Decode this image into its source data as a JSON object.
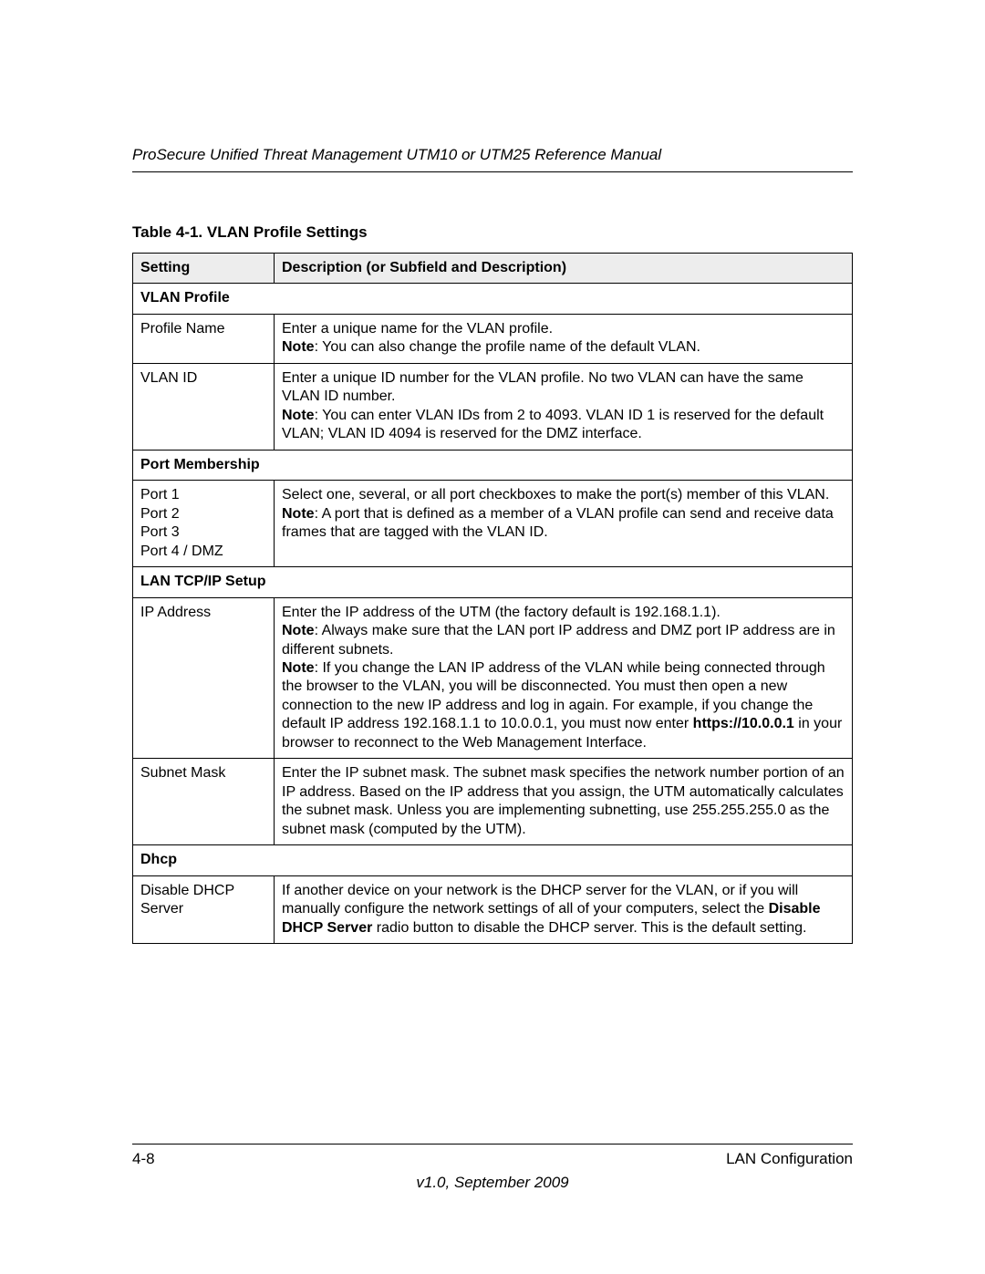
{
  "header": {
    "runningTitle": "ProSecure Unified Threat Management UTM10 or UTM25 Reference Manual"
  },
  "table": {
    "title": "Table 4-1. VLAN Profile Settings",
    "colHeaders": {
      "setting": "Setting",
      "description": "Description (or Subfield and Description)"
    },
    "sections": {
      "vlanProfile": {
        "label": "VLAN Profile",
        "rows": [
          {
            "setting": "Profile Name",
            "desc_part1": "Enter a unique name for the VLAN profile.",
            "desc_bold": "Note",
            "desc_part2": ": You can also change the profile name of the default VLAN."
          },
          {
            "setting": "VLAN ID",
            "desc_part1": "Enter a unique ID number for the VLAN profile. No two VLAN can have the same VLAN ID number.",
            "desc_bold": "Note",
            "desc_part2": ": You can enter VLAN IDs from 2 to 4093. VLAN ID 1 is reserved for the default VLAN; VLAN ID 4094 is reserved for the DMZ interface."
          }
        ]
      },
      "portMembership": {
        "label": "Port Membership",
        "row": {
          "settingLines": [
            "Port 1",
            "Port 2",
            "Port 3",
            "Port 4 / DMZ"
          ],
          "desc_part1": "Select one, several, or all port checkboxes to make the port(s) member of this VLAN.",
          "desc_bold": "Note",
          "desc_part2": ": A port that is defined as a member of a VLAN profile can send and receive data frames that are tagged with the VLAN ID."
        }
      },
      "lanTcpIp": {
        "label": "LAN TCP/IP Setup",
        "rows": [
          {
            "setting": "IP Address",
            "p1": "Enter the IP address of the UTM (the factory default is 192.168.1.1).",
            "b1": "Note",
            "p2": ": Always make sure that the LAN port IP address and DMZ port IP address are in different subnets.",
            "b2": "Note",
            "p3": ": If you change the LAN IP address of the VLAN while being connected through the browser to the VLAN, you will be disconnected. You must then open a new connection to the new IP address and log in again. For example, if you change the default IP address 192.168.1.1 to 10.0.0.1, you must now enter ",
            "b3": "https://10.0.0.1",
            "p4": " in your browser to reconnect to the Web Management Interface."
          },
          {
            "setting": "Subnet Mask",
            "desc": "Enter the IP subnet mask. The subnet mask specifies the network number portion of an IP address. Based on the IP address that you assign, the UTM automatically calculates the subnet mask. Unless you are implementing subnetting, use 255.255.255.0 as the subnet mask (computed by the UTM)."
          }
        ]
      },
      "dhcp": {
        "label": "Dhcp",
        "row": {
          "setting": "Disable DHCP Server",
          "p1": "If another device on your network is the DHCP server for the VLAN, or if you will manually configure the network settings of all of your computers, select the ",
          "b1": "Disable DHCP Server",
          "p2": " radio button to disable the DHCP server. This is the default setting."
        }
      }
    }
  },
  "footer": {
    "pageNumber": "4-8",
    "chapter": "LAN Configuration",
    "version": "v1.0, September 2009"
  },
  "style": {
    "pageWidth": 1080,
    "pageHeight": 1397,
    "textColor": "#000000",
    "background": "#ffffff",
    "headerShade": "#ededed",
    "borderColor": "#000000",
    "bodyFontSize": 16,
    "titleFontSize": 17
  }
}
